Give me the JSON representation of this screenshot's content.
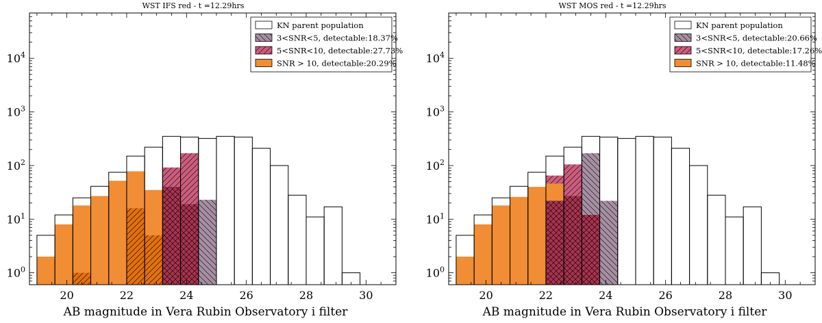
{
  "figure_name": "WST detectability histograms",
  "chart_data": [
    {
      "type": "bar",
      "subtype": "histogram",
      "title": "WST IFS red - t =12.29hrs",
      "xlabel": "AB magnitude in Vera Rubin Observatory i filter",
      "ylabel": "",
      "xlim": [
        18.75,
        31.0
      ],
      "ylim": [
        0.6,
        70000
      ],
      "yscale": "log",
      "bin_width": 0.6,
      "x_ticks": [
        20,
        22,
        24,
        26,
        28,
        30
      ],
      "x_tick_labels": [
        "20",
        "22",
        "24",
        "26",
        "28",
        "30"
      ],
      "y_tick_labels": [
        {
          "value": 1,
          "base": "10",
          "exp": "0"
        },
        {
          "value": 10,
          "base": "10",
          "exp": "1"
        },
        {
          "value": 100,
          "base": "10",
          "exp": "2"
        },
        {
          "value": 1000,
          "base": "10",
          "exp": "3"
        },
        {
          "value": 10000,
          "base": "10",
          "exp": "4"
        }
      ],
      "bin_starts": [
        19.0,
        19.6,
        20.2,
        20.8,
        21.4,
        22.0,
        22.6,
        23.2,
        23.8,
        24.4,
        25.0,
        25.6,
        26.2,
        26.8,
        27.4,
        28.0,
        28.6,
        29.2
      ],
      "series": [
        {
          "name": "KN parent population",
          "legend": "KN parent population",
          "style": "outline",
          "color": "#000000",
          "values": [
            5,
            12,
            25,
            41,
            75,
            150,
            220,
            350,
            340,
            320,
            350,
            340,
            210,
            100,
            28,
            11,
            17,
            1
          ]
        },
        {
          "name": "3<SNR<5",
          "legend": "3<SNR<5, detectable:18.37%",
          "style": "backslash-hatch",
          "color": "#a68fa3",
          "values": [
            0,
            0,
            0,
            0,
            0,
            0,
            0,
            0,
            130,
            23,
            0,
            0,
            0,
            0,
            0,
            0,
            0,
            0
          ]
        },
        {
          "name": "5<SNR<10",
          "legend": "5<SNR<10, detectable:27.73%",
          "style": "slash-hatch",
          "color": "#cc5d7d",
          "values": [
            0,
            0,
            0,
            0,
            0,
            0,
            16,
            92,
            170,
            0,
            0,
            0,
            0,
            0,
            0,
            0,
            0,
            0
          ]
        },
        {
          "name": "SNR > 10",
          "legend": "SNR > 10, detectable:20.29%",
          "style": "solid",
          "color": "#f08d35",
          "values": [
            2,
            8,
            18,
            27,
            52,
            78,
            35,
            0,
            0,
            0,
            0,
            0,
            0,
            0,
            0,
            0,
            0,
            0
          ]
        }
      ],
      "overlap_crosshatch": {
        "color": "#a9334f",
        "values": [
          0,
          0,
          0,
          0,
          0,
          0,
          0,
          40,
          19,
          0,
          0,
          0,
          0,
          0,
          0,
          0,
          0,
          0
        ]
      },
      "dark_orange_overlay": {
        "color": "#e2700e",
        "values": [
          0,
          0,
          1,
          0,
          0,
          16,
          5,
          0,
          0,
          0,
          0,
          0,
          0,
          0,
          0,
          0,
          0,
          0
        ]
      },
      "legend_position": "top-right"
    },
    {
      "type": "bar",
      "subtype": "histogram",
      "title": "WST MOS red - t =12.29hrs",
      "xlabel": "AB magnitude in Vera Rubin Observatory i filter",
      "ylabel": "",
      "xlim": [
        18.75,
        31.0
      ],
      "ylim": [
        0.6,
        70000
      ],
      "yscale": "log",
      "bin_width": 0.6,
      "x_ticks": [
        20,
        22,
        24,
        26,
        28,
        30
      ],
      "x_tick_labels": [
        "20",
        "22",
        "24",
        "26",
        "28",
        "30"
      ],
      "y_tick_labels": [
        {
          "value": 1,
          "base": "10",
          "exp": "0"
        },
        {
          "value": 10,
          "base": "10",
          "exp": "1"
        },
        {
          "value": 100,
          "base": "10",
          "exp": "2"
        },
        {
          "value": 1000,
          "base": "10",
          "exp": "3"
        },
        {
          "value": 10000,
          "base": "10",
          "exp": "4"
        }
      ],
      "bin_starts": [
        19.0,
        19.6,
        20.2,
        20.8,
        21.4,
        22.0,
        22.6,
        23.2,
        23.8,
        24.4,
        25.0,
        25.6,
        26.2,
        26.8,
        27.4,
        28.0,
        28.6,
        29.2
      ],
      "series": [
        {
          "name": "KN parent population",
          "legend": "KN parent population",
          "style": "outline",
          "color": "#000000",
          "values": [
            5,
            12,
            25,
            41,
            75,
            150,
            220,
            350,
            340,
            320,
            350,
            340,
            210,
            100,
            28,
            11,
            17,
            1
          ]
        },
        {
          "name": "3<SNR<5",
          "legend": "3<SNR<5, detectable:20.66%",
          "style": "backslash-hatch",
          "color": "#a68fa3",
          "values": [
            0,
            0,
            0,
            0,
            0,
            0,
            0,
            170,
            22,
            0,
            0,
            0,
            0,
            0,
            0,
            0,
            0,
            0
          ]
        },
        {
          "name": "5<SNR<10",
          "legend": "5<SNR<10, detectable:17.26%",
          "style": "slash-hatch",
          "color": "#cc5d7d",
          "values": [
            0,
            0,
            0,
            0,
            0,
            65,
            105,
            0,
            0,
            0,
            0,
            0,
            0,
            0,
            0,
            0,
            0,
            0
          ]
        },
        {
          "name": "SNR > 10",
          "legend": "SNR > 10, detectable:11.48%",
          "style": "solid",
          "color": "#f08d35",
          "values": [
            2,
            8,
            18,
            26,
            40,
            46,
            0,
            0,
            0,
            0,
            0,
            0,
            0,
            0,
            0,
            0,
            0,
            0
          ]
        }
      ],
      "overlap_crosshatch": {
        "color": "#a9334f",
        "values": [
          0,
          0,
          0,
          0,
          0,
          22,
          27,
          12,
          0,
          0,
          0,
          0,
          0,
          0,
          0,
          0,
          0,
          0
        ]
      },
      "dark_orange_overlay": {
        "color": "#e2700e",
        "values": [
          0,
          0,
          0,
          0,
          0,
          5,
          0,
          0,
          0,
          0,
          0,
          0,
          0,
          0,
          0,
          0,
          0,
          0
        ]
      },
      "legend_position": "top-right"
    }
  ]
}
